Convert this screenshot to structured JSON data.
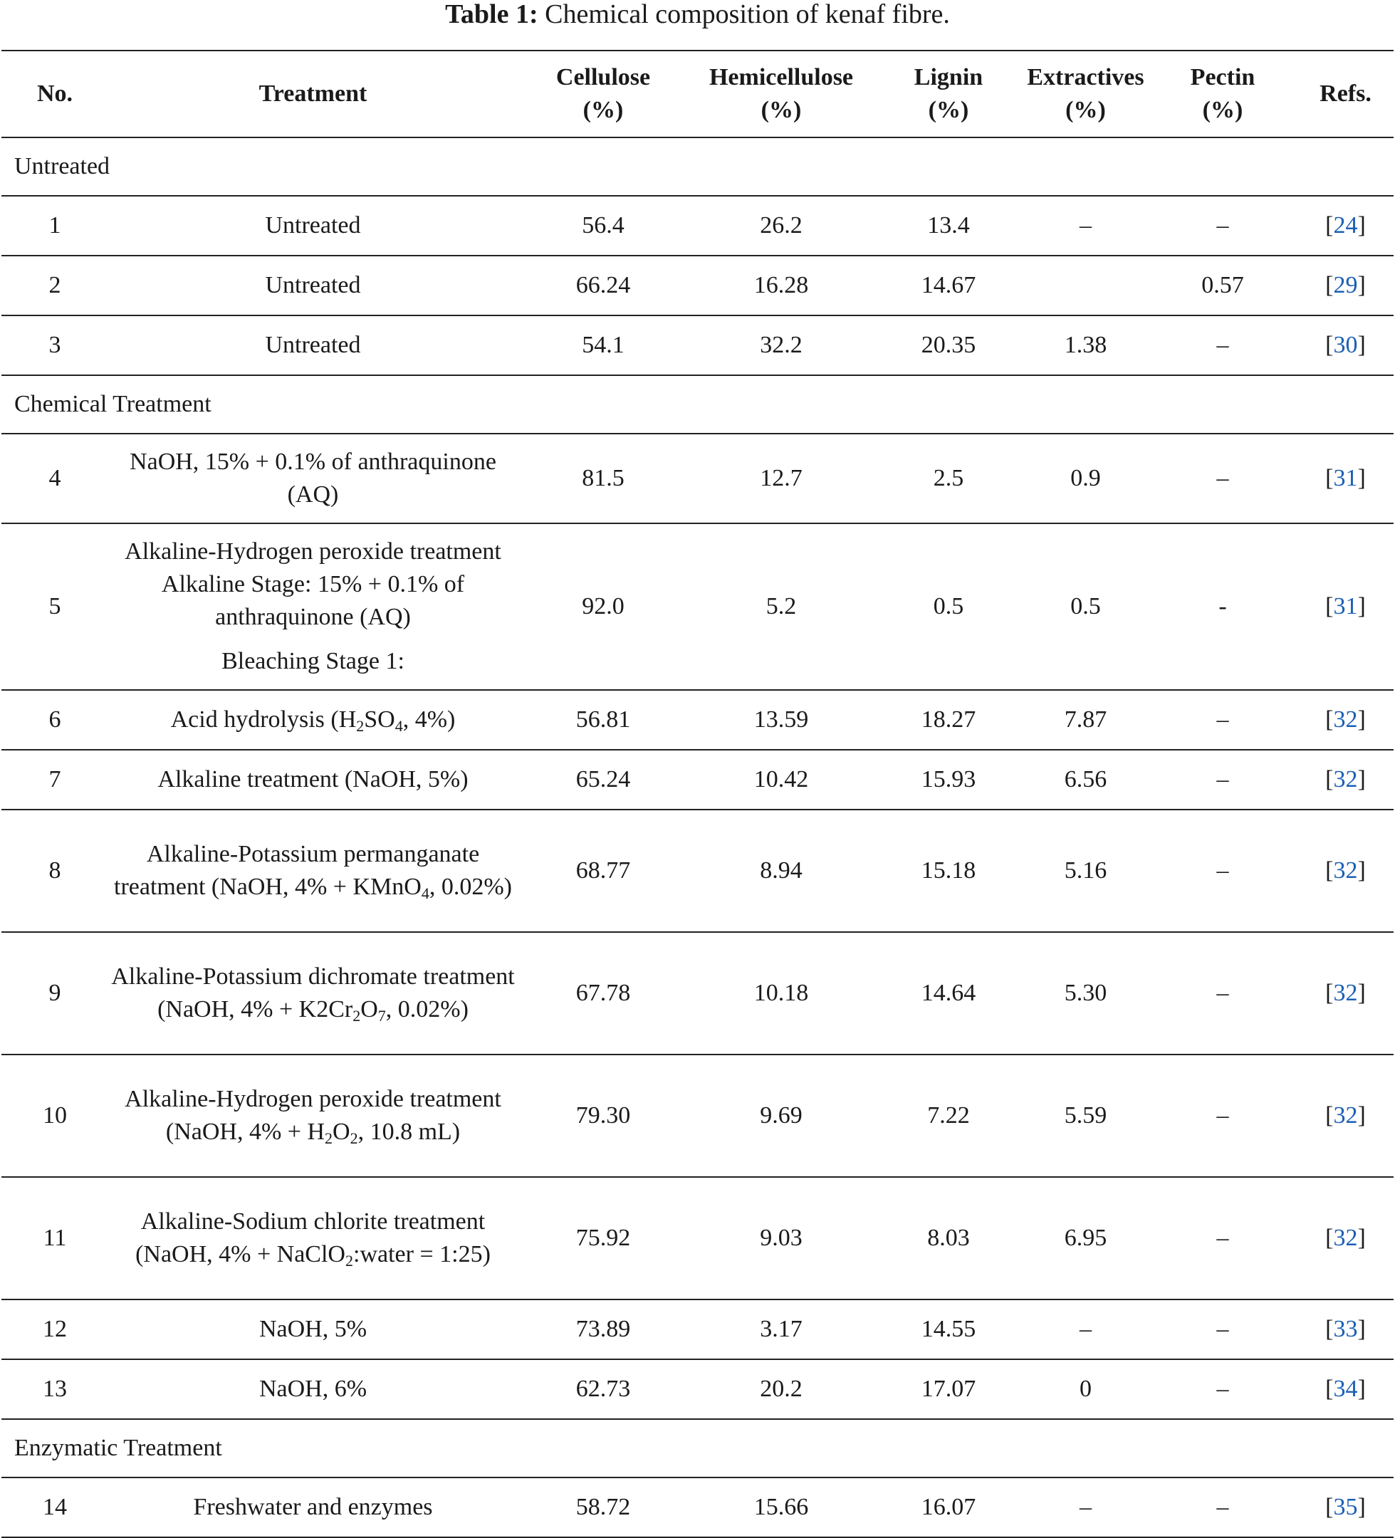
{
  "caption": {
    "label": "Table 1:",
    "text": "Chemical composition of kenaf fibre."
  },
  "headers": {
    "no": "No.",
    "treatment": "Treatment",
    "cellulose": "Cellulose",
    "hemicellulose": "Hemicellulose",
    "lignin": "Lignin",
    "extractives": "Extractives",
    "pectin": "Pectin",
    "unit": "(%)",
    "refs": "Refs."
  },
  "sections": {
    "untreated": "Untreated",
    "chemical": "Chemical Treatment",
    "enzymatic": "Enzymatic Treatment"
  },
  "brackets": {
    "open": "[",
    "close": "]"
  },
  "rows": [
    {
      "no": "1",
      "treatment": "Untreated",
      "cellulose": "56.4",
      "hemicellulose": "26.2",
      "lignin": "13.4",
      "extractives": "–",
      "pectin": "–",
      "ref": "24"
    },
    {
      "no": "2",
      "treatment": "Untreated",
      "cellulose": "66.24",
      "hemicellulose": "16.28",
      "lignin": "14.67",
      "extractives": "",
      "pectin": "0.57",
      "ref": "29"
    },
    {
      "no": "3",
      "treatment": "Untreated",
      "cellulose": "54.1",
      "hemicellulose": "32.2",
      "lignin": "20.35",
      "extractives": "1.38",
      "pectin": "–",
      "ref": "30"
    },
    {
      "no": "4",
      "treatment": "NaOH, 15% + 0.1% of anthraquinone (AQ)",
      "cellulose": "81.5",
      "hemicellulose": "12.7",
      "lignin": "2.5",
      "extractives": "0.9",
      "pectin": "–",
      "ref": "31"
    },
    {
      "no": "5",
      "treatment": "Alkaline-Hydrogen peroxide treatment Alkaline Stage: 15% + 0.1% of anthraquinone (AQ)",
      "note": "Bleaching Stage 1:",
      "cellulose": "92.0",
      "hemicellulose": "5.2",
      "lignin": "0.5",
      "extractives": "0.5",
      "pectin": "-",
      "ref": "31"
    },
    {
      "no": "6",
      "treatment_parts": [
        "Acid hydrolysis (H",
        "2",
        "SO",
        "4",
        ", 4%)"
      ],
      "cellulose": "56.81",
      "hemicellulose": "13.59",
      "lignin": "18.27",
      "extractives": "7.87",
      "pectin": "–",
      "ref": "32"
    },
    {
      "no": "7",
      "treatment": "Alkaline treatment (NaOH, 5%)",
      "cellulose": "65.24",
      "hemicellulose": "10.42",
      "lignin": "15.93",
      "extractives": "6.56",
      "pectin": "–",
      "ref": "32"
    },
    {
      "no": "8",
      "treatment_parts": [
        "Alkaline-Potassium permanganate treatment (NaOH, 4% + KMnO",
        "4",
        ", 0.02%)"
      ],
      "cellulose": "68.77",
      "hemicellulose": "8.94",
      "lignin": "15.18",
      "extractives": "5.16",
      "pectin": "–",
      "ref": "32"
    },
    {
      "no": "9",
      "treatment_parts": [
        "Alkaline-Potassium dichromate treatment (NaOH, 4% + K2Cr",
        "2",
        "O",
        "7",
        ", 0.02%)"
      ],
      "cellulose": "67.78",
      "hemicellulose": "10.18",
      "lignin": "14.64",
      "extractives": "5.30",
      "pectin": "–",
      "ref": "32"
    },
    {
      "no": "10",
      "treatment_parts": [
        "Alkaline-Hydrogen peroxide treatment (NaOH, 4% + H",
        "2",
        "O",
        "2",
        ", 10.8 mL)"
      ],
      "cellulose": "79.30",
      "hemicellulose": "9.69",
      "lignin": "7.22",
      "extractives": "5.59",
      "pectin": "–",
      "ref": "32"
    },
    {
      "no": "11",
      "treatment_parts": [
        "Alkaline-Sodium chlorite treatment (NaOH, 4% + NaClO",
        "2",
        ":water = 1:25)"
      ],
      "cellulose": "75.92",
      "hemicellulose": "9.03",
      "lignin": "8.03",
      "extractives": "6.95",
      "pectin": "–",
      "ref": "32"
    },
    {
      "no": "12",
      "treatment": "NaOH, 5%",
      "cellulose": "73.89",
      "hemicellulose": "3.17",
      "lignin": "14.55",
      "extractives": "–",
      "pectin": "–",
      "ref": "33"
    },
    {
      "no": "13",
      "treatment": "NaOH, 6%",
      "cellulose": "62.73",
      "hemicellulose": "20.2",
      "lignin": "17.07",
      "extractives": "0",
      "pectin": "–",
      "ref": "34"
    },
    {
      "no": "14",
      "treatment": "Freshwater and enzymes",
      "cellulose": "58.72",
      "hemicellulose": "15.66",
      "lignin": "16.07",
      "extractives": "–",
      "pectin": "–",
      "ref": "35"
    }
  ]
}
